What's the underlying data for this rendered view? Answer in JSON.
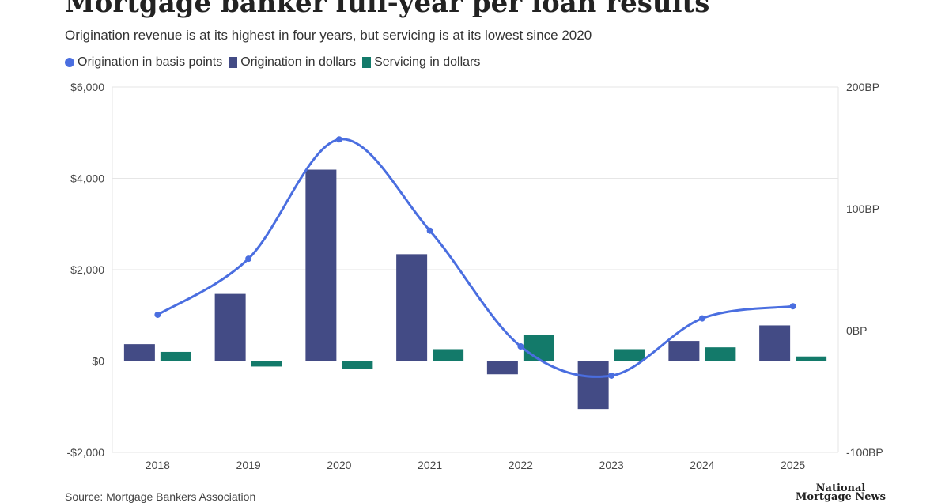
{
  "title": "Mortgage banker full-year per loan results",
  "subtitle": "Origination revenue is at its highest in four years, but servicing is at its lowest since 2020",
  "source": "Source: Mortgage Bankers Association",
  "logo": {
    "line1": "National",
    "line2": "Mortgage News"
  },
  "colors": {
    "bp_line": "#4a6ee0",
    "orig_dollars": "#434b85",
    "serv_dollars": "#137a6a",
    "grid": "#e6e6e6",
    "axis_text": "#444444"
  },
  "chart_data": {
    "type": "bar",
    "categories": [
      "2018",
      "2019",
      "2020",
      "2021",
      "2022",
      "2023",
      "2024",
      "2025"
    ],
    "series": [
      {
        "name": "Origination in basis points",
        "type": "line",
        "axis": "right",
        "values": [
          13,
          59,
          157,
          82,
          -13,
          -37,
          10,
          20
        ]
      },
      {
        "name": "Origination in dollars",
        "type": "bar",
        "axis": "left",
        "values": [
          370,
          1470,
          4190,
          2340,
          -290,
          -1050,
          440,
          780
        ]
      },
      {
        "name": "Servicing in dollars",
        "type": "bar",
        "axis": "left",
        "values": [
          200,
          -120,
          -180,
          260,
          580,
          260,
          300,
          100
        ]
      }
    ],
    "left_axis": {
      "ylim": [
        -2000,
        6000
      ],
      "ticks": [
        -2000,
        0,
        2000,
        4000,
        6000
      ],
      "tick_labels": [
        "-$2,000",
        "$0",
        "$2,000",
        "$4,000",
        "$6,000"
      ]
    },
    "right_axis": {
      "ylim": [
        -100,
        200
      ],
      "ticks": [
        -100,
        0,
        100,
        200
      ],
      "tick_labels": [
        "-100BP",
        "0BP",
        "100BP",
        "200BP"
      ]
    },
    "grid": true,
    "legend_position": "top-left"
  }
}
